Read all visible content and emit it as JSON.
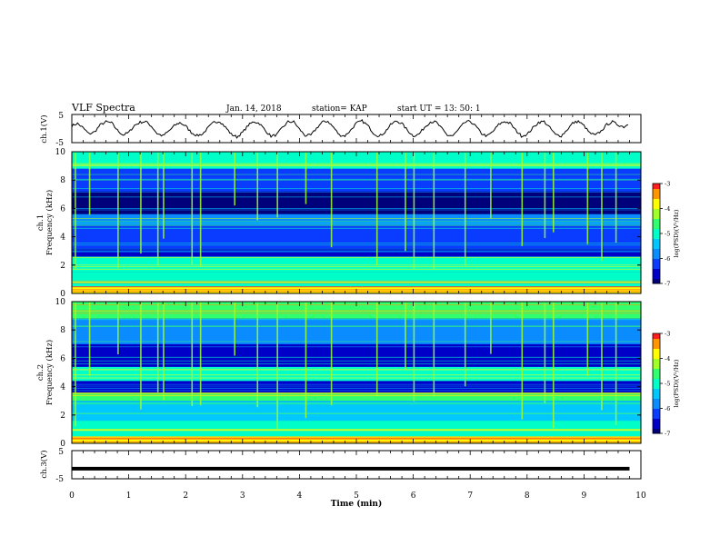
{
  "header": {
    "title": "VLF Spectra",
    "date": "Jan. 14, 2018",
    "station": "station= KAP",
    "start": "start  UT =   13: 50: 1"
  },
  "colors": {
    "spectrogram_colormap": [
      "#00007a",
      "#0000c8",
      "#0a3cff",
      "#0a8cff",
      "#00c8ff",
      "#00ffc8",
      "#32ff6e",
      "#a0ff28",
      "#ffff00",
      "#ff9600",
      "#ff1e1e",
      "#ffffff"
    ],
    "line": "#000000"
  },
  "chart_data": [
    {
      "id": "ch1-waveform",
      "type": "line",
      "ylabel": "ch.1(V)",
      "ylim": [
        -5,
        5
      ],
      "yticks": [
        "5",
        "-5"
      ],
      "xlim": [
        0,
        10
      ],
      "note_series": "oscillating signal ~ +/-2.5 V, period ~0.5 min, ends at ~9.8 min",
      "x": [
        0.0,
        0.1,
        0.2,
        0.3,
        0.4,
        0.5,
        0.6,
        0.7,
        0.8,
        0.9,
        1.0,
        1.1,
        1.2,
        1.3,
        1.4,
        1.5,
        1.6,
        1.7,
        1.8,
        1.9,
        2.0,
        2.1,
        2.2,
        2.3,
        2.4,
        2.5,
        2.6,
        2.7,
        2.8,
        2.9,
        3.0,
        3.1,
        3.2,
        3.3,
        3.4,
        3.5,
        3.6,
        3.7,
        3.8,
        3.9,
        4.0,
        4.1,
        4.2,
        4.3,
        4.4,
        4.5,
        4.6,
        4.7,
        4.8,
        4.9,
        5.0,
        5.1,
        5.2,
        5.3,
        5.4,
        5.5,
        5.6,
        5.7,
        5.8,
        5.9,
        6.0,
        6.1,
        6.2,
        6.3,
        6.4,
        6.5,
        6.6,
        6.7,
        6.8,
        6.9,
        7.0,
        7.1,
        7.2,
        7.3,
        7.4,
        7.5,
        7.6,
        7.7,
        7.8,
        7.9,
        8.0,
        8.1,
        8.2,
        8.3,
        8.4,
        8.5,
        8.6,
        8.7,
        8.8,
        8.9,
        9.0,
        9.1,
        9.2,
        9.3,
        9.4,
        9.5,
        9.6,
        9.7,
        9.8
      ],
      "y": [
        1.0,
        1.8,
        0.2,
        -1.9,
        -1.2,
        1.3,
        2.4,
        2.0,
        -0.6,
        -2.3,
        -1.4,
        1.1,
        2.2,
        2.5,
        0.8,
        -1.8,
        -2.6,
        -1.0,
        1.0,
        2.1,
        0.9,
        -1.4,
        -2.5,
        -1.9,
        0.4,
        2.3,
        2.6,
        0.5,
        -2.0,
        -3.0,
        -1.4,
        1.2,
        2.5,
        1.8,
        -0.7,
        -2.7,
        -2.2,
        0.3,
        2.4,
        2.4,
        -0.2,
        -2.5,
        -2.4,
        0.1,
        2.3,
        2.6,
        0.4,
        -2.3,
        -2.6,
        -0.6,
        1.9,
        2.7,
        1.1,
        -1.6,
        -2.8,
        -1.3,
        1.3,
        2.7,
        1.8,
        -0.7,
        -2.6,
        -2.0,
        0.5,
        2.4,
        2.3,
        0.0,
        -2.4,
        -2.5,
        -0.3,
        2.1,
        2.6,
        0.8,
        -1.8,
        -2.7,
        -1.1,
        1.4,
        2.5,
        1.9,
        -0.6,
        -2.6,
        -2.1,
        0.2,
        2.2,
        2.5,
        0.3,
        -2.2,
        -2.6,
        -0.5,
        1.9,
        2.6,
        1.0,
        -1.6,
        -2.4,
        -0.9,
        1.4,
        2.4,
        1.3,
        0.6,
        1.9
      ]
    },
    {
      "id": "ch1-spectrogram",
      "type": "heatmap",
      "ylabel": "ch.1\nFrequency (kHz)",
      "xlim": [
        0,
        10
      ],
      "ylim": [
        0,
        10
      ],
      "yticks": [
        "0",
        "2",
        "4",
        "6",
        "8",
        "10"
      ],
      "colorbar": {
        "label": "log(PSD)(V²/Hz)",
        "range": [
          -7,
          -3
        ],
        "ticks": [
          "-3",
          "-4",
          "-5",
          "-6",
          "-7"
        ]
      },
      "bands": [
        {
          "from": 0.0,
          "to": 0.5,
          "level": -3.8
        },
        {
          "from": 0.5,
          "to": 1.5,
          "level": -4.9
        },
        {
          "from": 1.5,
          "to": 2.6,
          "level": -5.0
        },
        {
          "from": 2.6,
          "to": 3.2,
          "level": -6.6
        },
        {
          "from": 3.2,
          "to": 4.8,
          "level": -6.1
        },
        {
          "from": 4.8,
          "to": 5.6,
          "level": -5.8
        },
        {
          "from": 5.6,
          "to": 7.2,
          "level": -6.9
        },
        {
          "from": 7.2,
          "to": 8.8,
          "level": -6.2
        },
        {
          "from": 8.8,
          "to": 10.0,
          "level": -5.2
        }
      ],
      "spike_times_min": [
        0.05,
        0.3,
        0.8,
        1.2,
        1.5,
        1.6,
        2.1,
        2.25,
        2.85,
        3.25,
        3.6,
        4.1,
        4.55,
        5.35,
        5.85,
        6.0,
        6.35,
        6.9,
        7.35,
        7.9,
        8.3,
        8.45,
        9.05,
        9.3,
        9.55
      ]
    },
    {
      "id": "ch2-spectrogram",
      "type": "heatmap",
      "ylabel": "ch.2\nFrequency (kHz)",
      "xlim": [
        0,
        10
      ],
      "ylim": [
        0,
        10
      ],
      "yticks": [
        "0",
        "2",
        "4",
        "6",
        "8",
        "10"
      ],
      "colorbar": {
        "label": "log(PSD)(V²/Hz)",
        "range": [
          -7,
          -3
        ],
        "ticks": [
          "-3",
          "-4",
          "-5",
          "-6",
          "-7"
        ]
      },
      "bands": [
        {
          "from": 0.0,
          "to": 0.5,
          "level": -3.9
        },
        {
          "from": 0.5,
          "to": 1.6,
          "level": -5.1
        },
        {
          "from": 1.6,
          "to": 3.0,
          "level": -5.6
        },
        {
          "from": 3.0,
          "to": 3.6,
          "level": -4.6
        },
        {
          "from": 3.6,
          "to": 4.4,
          "level": -6.7
        },
        {
          "from": 4.4,
          "to": 5.4,
          "level": -5.0
        },
        {
          "from": 5.4,
          "to": 7.0,
          "level": -6.5
        },
        {
          "from": 7.0,
          "to": 8.8,
          "level": -6.0
        },
        {
          "from": 8.8,
          "to": 10.0,
          "level": -4.8
        }
      ],
      "spike_times_min": [
        0.05,
        0.3,
        0.8,
        1.2,
        1.5,
        1.6,
        2.1,
        2.25,
        2.85,
        3.25,
        3.6,
        4.1,
        4.55,
        5.35,
        5.85,
        6.0,
        6.35,
        6.9,
        7.35,
        7.9,
        8.3,
        8.45,
        9.05,
        9.3,
        9.55
      ]
    },
    {
      "id": "ch3-waveform",
      "type": "line",
      "ylabel": "ch.3(V)",
      "ylim": [
        -5,
        5
      ],
      "yticks": [
        "5",
        "-5"
      ],
      "xlim": [
        0,
        10
      ],
      "x": [
        0,
        9.8
      ],
      "y": [
        -1.4,
        -1.4
      ],
      "xlabel": "Time (min)",
      "xticks": [
        "0",
        "1",
        "2",
        "3",
        "4",
        "5",
        "6",
        "7",
        "8",
        "9",
        "10"
      ]
    }
  ]
}
